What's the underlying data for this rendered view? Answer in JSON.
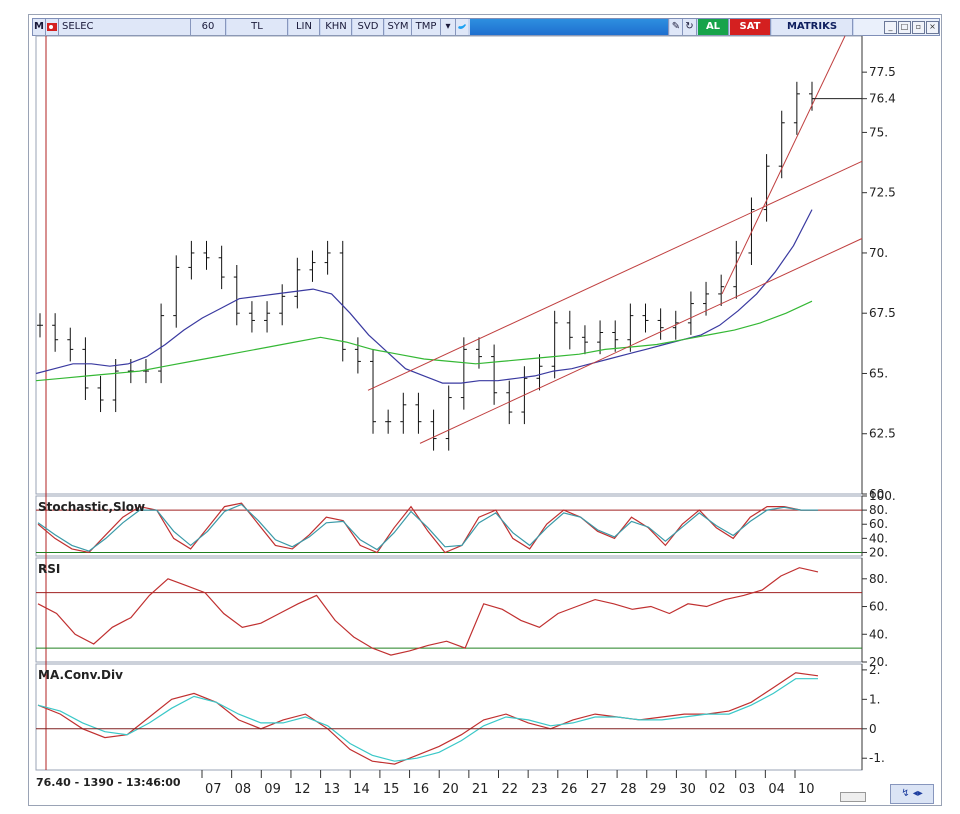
{
  "toolbar": {
    "menu_letter": "M",
    "symbol": "SELEC",
    "period": "60",
    "currency": "TL",
    "lin": "LIN",
    "khn": "KHN",
    "svd": "SVD",
    "sym": "SYM",
    "tmp": "TMP",
    "buy": "AL",
    "sell": "SAT",
    "brand": "MATRIKS",
    "colors": {
      "buy": "#17a34a",
      "sell": "#d42020",
      "bar": "#c9d6f0"
    }
  },
  "status": {
    "cursor_readout": "76.40 - 1390 - 13:46:00"
  },
  "chart_data": [
    {
      "type": "ohlc",
      "panel": "price",
      "x_labels": [
        "07",
        "08",
        "09",
        "12",
        "13",
        "14",
        "15",
        "16",
        "20",
        "21",
        "22",
        "23",
        "26",
        "27",
        "28",
        "29",
        "30",
        "02",
        "03",
        "04",
        "10"
      ],
      "ylim": [
        60,
        79
      ],
      "y_ticks": [
        "60.",
        "62.5",
        "65.",
        "67.5",
        "70.",
        "72.5",
        "75.",
        "76.4",
        "77.5"
      ],
      "last_value": 76.4,
      "close": [
        67.0,
        66.4,
        66.0,
        64.4,
        63.9,
        65.1,
        65.1,
        65.1,
        67.4,
        69.4,
        70.0,
        69.8,
        69.0,
        67.5,
        67.2,
        67.5,
        68.2,
        69.3,
        69.6,
        70.0,
        66.0,
        65.5,
        63.0,
        63.0,
        63.7,
        63.0,
        62.3,
        64.0,
        66.0,
        65.7,
        64.2,
        63.4,
        64.8,
        65.3,
        67.1,
        66.5,
        66.3,
        66.7,
        66.4,
        67.4,
        67.2,
        66.9,
        67.1,
        67.9,
        68.3,
        68.6,
        70.0,
        71.8,
        73.6,
        75.4,
        76.6,
        76.4
      ],
      "series": [
        {
          "name": "MA short",
          "color": "#3a3aa0",
          "values": [
            65.0,
            65.2,
            65.4,
            65.4,
            65.3,
            65.4,
            65.7,
            66.2,
            66.8,
            67.3,
            67.7,
            68.1,
            68.2,
            68.3,
            68.4,
            68.5,
            68.3,
            67.5,
            66.6,
            65.9,
            65.2,
            64.9,
            64.6,
            64.6,
            64.7,
            64.7,
            64.8,
            64.9,
            65.1,
            65.2,
            65.4,
            65.6,
            65.8,
            66.0,
            66.2,
            66.4,
            66.6,
            67.0,
            67.6,
            68.3,
            69.2,
            70.3,
            71.8
          ]
        },
        {
          "name": "MA long",
          "color": "#35b835",
          "values": [
            64.7,
            64.8,
            64.9,
            65.0,
            65.1,
            65.3,
            65.5,
            65.7,
            65.9,
            66.1,
            66.3,
            66.5,
            66.3,
            66.0,
            65.8,
            65.6,
            65.5,
            65.4,
            65.5,
            65.6,
            65.7,
            65.8,
            66.0,
            66.1,
            66.2,
            66.4,
            66.6,
            66.8,
            67.1,
            67.5,
            68.0
          ]
        }
      ]
    },
    {
      "type": "line",
      "panel": "stochastic",
      "title": "Stochastic,Slow",
      "ylim": [
        15,
        100
      ],
      "y_ticks": [
        "20.",
        "40.",
        "60.",
        "80.",
        "100."
      ],
      "levels": [
        80,
        20
      ],
      "series": [
        {
          "name": "%K",
          "color": "#c03030",
          "values": [
            60,
            40,
            25,
            20,
            45,
            70,
            85,
            80,
            40,
            25,
            55,
            85,
            90,
            60,
            30,
            25,
            45,
            70,
            65,
            30,
            20,
            55,
            85,
            50,
            20,
            30,
            70,
            80,
            40,
            25,
            60,
            80,
            70,
            50,
            40,
            70,
            55,
            30,
            60,
            80,
            55,
            40,
            70,
            85,
            85,
            80,
            80
          ]
        },
        {
          "name": "%D",
          "color": "#3a9aa8",
          "values": [
            62,
            45,
            30,
            22,
            40,
            62,
            80,
            80,
            50,
            30,
            50,
            78,
            88,
            65,
            38,
            28,
            42,
            62,
            64,
            38,
            24,
            48,
            78,
            55,
            28,
            30,
            62,
            76,
            48,
            30,
            55,
            76,
            70,
            52,
            42,
            64,
            56,
            36,
            56,
            76,
            58,
            44,
            64,
            80,
            84,
            80,
            80
          ]
        }
      ]
    },
    {
      "type": "line",
      "panel": "rsi",
      "title": "RSI",
      "ylim": [
        20,
        95
      ],
      "y_ticks": [
        "20.",
        "40.",
        "60.",
        "80."
      ],
      "levels": [
        70,
        30
      ],
      "series": [
        {
          "name": "RSI",
          "color": "#c03030",
          "values": [
            62,
            55,
            40,
            33,
            45,
            52,
            68,
            80,
            75,
            70,
            55,
            45,
            48,
            55,
            62,
            68,
            50,
            38,
            30,
            25,
            28,
            32,
            35,
            30,
            62,
            58,
            50,
            45,
            55,
            60,
            65,
            62,
            58,
            60,
            55,
            62,
            60,
            65,
            68,
            72,
            82,
            88,
            85
          ]
        }
      ]
    },
    {
      "type": "line",
      "panel": "macd",
      "title": "MA.Conv.Div",
      "ylim": [
        -1.4,
        2.2
      ],
      "y_ticks": [
        "-1.",
        "0",
        "1.",
        "2."
      ],
      "series": [
        {
          "name": "MACD",
          "color": "#c03030",
          "values": [
            0.8,
            0.5,
            0.0,
            -0.3,
            -0.2,
            0.4,
            1.0,
            1.2,
            0.9,
            0.3,
            0.0,
            0.3,
            0.5,
            0.0,
            -0.7,
            -1.1,
            -1.2,
            -0.9,
            -0.6,
            -0.2,
            0.3,
            0.5,
            0.2,
            0.0,
            0.3,
            0.5,
            0.4,
            0.3,
            0.4,
            0.5,
            0.5,
            0.6,
            0.9,
            1.4,
            1.9,
            1.8
          ]
        },
        {
          "name": "Signal",
          "color": "#3ac8c8",
          "values": [
            0.8,
            0.6,
            0.2,
            -0.1,
            -0.2,
            0.2,
            0.7,
            1.1,
            0.9,
            0.5,
            0.2,
            0.2,
            0.4,
            0.1,
            -0.5,
            -0.9,
            -1.1,
            -1.0,
            -0.8,
            -0.4,
            0.1,
            0.4,
            0.3,
            0.1,
            0.2,
            0.4,
            0.4,
            0.3,
            0.3,
            0.4,
            0.5,
            0.5,
            0.8,
            1.2,
            1.7,
            1.7
          ]
        }
      ]
    }
  ]
}
